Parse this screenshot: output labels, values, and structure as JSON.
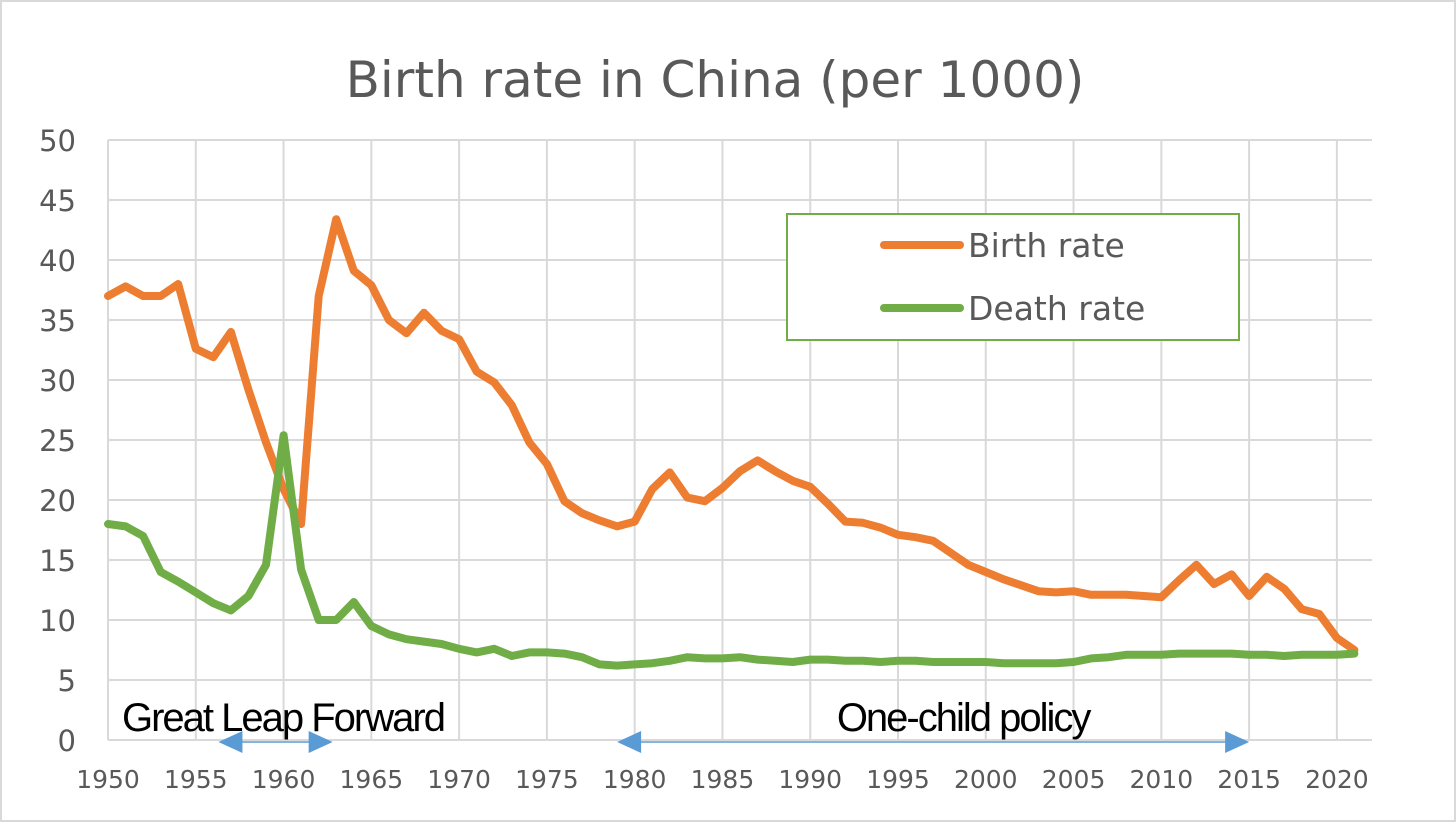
{
  "chart_data": {
    "type": "line",
    "title": "Birth rate in China (per 1000)",
    "xlabel": "",
    "ylabel": "",
    "xlim": [
      1950,
      2022
    ],
    "ylim": [
      0,
      50
    ],
    "grid": true,
    "legend_position": "top-right",
    "x_ticks": [
      "1950",
      "1955",
      "1960",
      "1965",
      "1970",
      "1975",
      "1980",
      "1985",
      "1990",
      "1995",
      "2000",
      "2005",
      "2010",
      "2015",
      "2020"
    ],
    "y_ticks": [
      "0",
      "5",
      "10",
      "15",
      "20",
      "25",
      "30",
      "35",
      "40",
      "45",
      "50"
    ],
    "x": [
      1950,
      1951,
      1952,
      1953,
      1954,
      1955,
      1956,
      1957,
      1958,
      1959,
      1960,
      1961,
      1962,
      1963,
      1964,
      1965,
      1966,
      1967,
      1968,
      1969,
      1970,
      1971,
      1972,
      1973,
      1974,
      1975,
      1976,
      1977,
      1978,
      1979,
      1980,
      1981,
      1982,
      1983,
      1984,
      1985,
      1986,
      1987,
      1988,
      1989,
      1990,
      1991,
      1992,
      1993,
      1994,
      1995,
      1996,
      1997,
      1998,
      1999,
      2000,
      2001,
      2002,
      2003,
      2004,
      2005,
      2006,
      2007,
      2008,
      2009,
      2010,
      2011,
      2012,
      2013,
      2014,
      2015,
      2016,
      2017,
      2018,
      2019,
      2020,
      2021
    ],
    "series": [
      {
        "name": "Birth rate",
        "color": "#ed7d31",
        "values": [
          37.0,
          37.8,
          37.0,
          37.0,
          38.0,
          32.6,
          31.9,
          34.0,
          29.2,
          24.8,
          20.9,
          18.0,
          37.0,
          43.4,
          39.1,
          37.9,
          35.0,
          33.9,
          35.6,
          34.1,
          33.4,
          30.7,
          29.8,
          27.9,
          24.8,
          23.0,
          19.9,
          18.9,
          18.3,
          17.8,
          18.2,
          20.9,
          22.3,
          20.2,
          19.9,
          21.0,
          22.4,
          23.3,
          22.4,
          21.6,
          21.1,
          19.7,
          18.2,
          18.1,
          17.7,
          17.1,
          16.9,
          16.6,
          15.6,
          14.6,
          14.0,
          13.4,
          12.9,
          12.4,
          12.3,
          12.4,
          12.1,
          12.1,
          12.1,
          12.0,
          11.9,
          13.3,
          14.6,
          13.0,
          13.8,
          12.0,
          13.6,
          12.6,
          10.9,
          10.5,
          8.5,
          7.5
        ]
      },
      {
        "name": "Death rate",
        "color": "#70ad47",
        "values": [
          18.0,
          17.8,
          17.0,
          14.0,
          13.2,
          12.3,
          11.4,
          10.8,
          12.0,
          14.6,
          25.4,
          14.2,
          10.0,
          10.0,
          11.5,
          9.5,
          8.8,
          8.4,
          8.2,
          8.0,
          7.6,
          7.3,
          7.6,
          7.0,
          7.3,
          7.3,
          7.2,
          6.9,
          6.3,
          6.2,
          6.3,
          6.4,
          6.6,
          6.9,
          6.8,
          6.8,
          6.9,
          6.7,
          6.6,
          6.5,
          6.7,
          6.7,
          6.6,
          6.6,
          6.5,
          6.6,
          6.6,
          6.5,
          6.5,
          6.5,
          6.5,
          6.4,
          6.4,
          6.4,
          6.4,
          6.5,
          6.8,
          6.9,
          7.1,
          7.1,
          7.1,
          7.2,
          7.2,
          7.2,
          7.2,
          7.1,
          7.1,
          7.0,
          7.1,
          7.1,
          7.1,
          7.2
        ]
      }
    ],
    "annotations": [
      {
        "text": "Great Leap Forward",
        "from": 1958,
        "to": 1962,
        "color": "#5b9bd5"
      },
      {
        "text": "One-child policy",
        "from": 1979,
        "to": 2015,
        "color": "#5b9bd5"
      }
    ]
  }
}
